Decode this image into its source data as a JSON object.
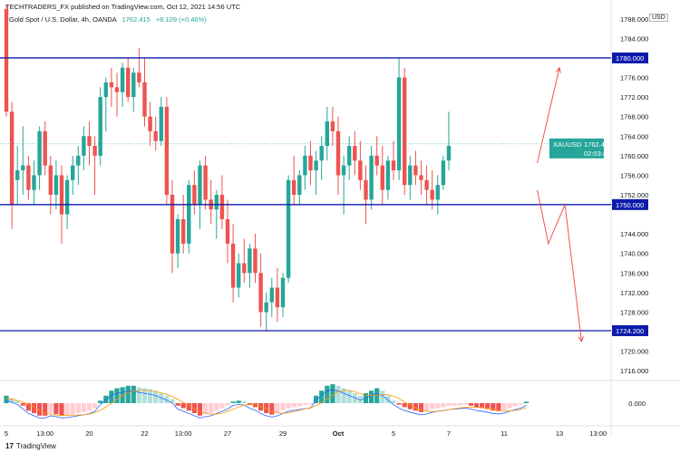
{
  "header": {
    "published": "TECHTRADERS_FX published on TradingView.com, Oct 12, 2021 14:56 UTC",
    "symbol": "Gold Spot / U.S. Dollar, 4h, OANDA",
    "price": "1762.415",
    "change": "+8.109 (+0.46%)"
  },
  "currency": "USD",
  "price_axis": {
    "ticks": [
      "1788.000",
      "1784.000",
      "1776.000",
      "1772.000",
      "1768.000",
      "1764.000",
      "1760.000",
      "1756.000",
      "1752.000",
      "1744.000",
      "1740.000",
      "1736.000",
      "1732.000",
      "1728.000",
      "1720.000",
      "1716.000"
    ],
    "levels": [
      {
        "label": "1780.000",
        "value": 1780.0,
        "color": "#0d1bab"
      },
      {
        "label": "1750.000",
        "value": 1750.0,
        "color": "#0d1bab"
      },
      {
        "label": "1724.200",
        "value": 1724.2,
        "color": "#0d1bab"
      }
    ],
    "current": {
      "symbol": "XAUUSD",
      "price": "1762.415",
      "countdown": "02:03:47",
      "value": 1762.415,
      "color": "#26a69a"
    }
  },
  "time_axis": {
    "labels": [
      {
        "t": "5",
        "bar": 0
      },
      {
        "t": "13:00",
        "bar": 7
      },
      {
        "t": "20",
        "bar": 15
      },
      {
        "t": "22",
        "bar": 25
      },
      {
        "t": "13:00",
        "bar": 32
      },
      {
        "t": "27",
        "bar": 40
      },
      {
        "t": "29",
        "bar": 50
      },
      {
        "t": "Oct",
        "bar": 60
      },
      {
        "t": "5",
        "bar": 70
      },
      {
        "t": "7",
        "bar": 80
      },
      {
        "t": "11",
        "bar": 90
      },
      {
        "t": "13",
        "bar": 100
      },
      {
        "t": "13:00",
        "bar": 107
      }
    ]
  },
  "oscillator": {
    "zero_label": "0.000",
    "values": [
      1.5,
      1.0,
      0.5,
      -0.5,
      -1.5,
      -2.0,
      -2.5,
      -2.5,
      -2.0,
      -2.2,
      -2.5,
      -2.4,
      -2.2,
      -2.0,
      -1.8,
      -1.5,
      -1.0,
      0.5,
      1.5,
      2.5,
      3.0,
      3.2,
      3.5,
      3.5,
      3.2,
      3.0,
      2.8,
      2.5,
      2.0,
      1.5,
      0.8,
      -0.5,
      -1.0,
      -1.5,
      -2.0,
      -2.5,
      -2.2,
      -2.0,
      -1.5,
      -1.0,
      -0.5,
      0.3,
      0.5,
      0.4,
      -0.3,
      -0.8,
      -1.5,
      -2.0,
      -2.3,
      -2.0,
      -1.5,
      -1.0,
      -0.8,
      -0.6,
      -0.4,
      -0.3,
      1.5,
      2.5,
      3.5,
      3.8,
      3.5,
      3.0,
      2.5,
      2.0,
      1.5,
      2.0,
      2.5,
      3.0,
      2.5,
      1.5,
      0.5,
      -0.3,
      -0.8,
      -1.2,
      -1.5,
      -1.8,
      -1.6,
      -1.2,
      -1.0,
      -0.8,
      -0.6,
      -0.5,
      -0.4,
      -0.3,
      -0.5,
      -0.8,
      -1.0,
      -1.2,
      -1.5,
      -1.6,
      -1.4,
      -1.0,
      -0.6,
      -0.3,
      0.3
    ]
  },
  "brand": {
    "name": "TradingView",
    "mark": "17"
  },
  "colors": {
    "up": "#26a69a",
    "down": "#ef5350",
    "level": "#0d1bab",
    "arrow": "#f25151"
  },
  "candles": [
    [
      1790,
      1791,
      1768,
      1769
    ],
    [
      1769,
      1771,
      1745,
      1750
    ],
    [
      1755,
      1762,
      1750,
      1757
    ],
    [
      1757,
      1766,
      1752,
      1758
    ],
    [
      1758,
      1760,
      1751,
      1753
    ],
    [
      1753,
      1759,
      1750,
      1756
    ],
    [
      1756,
      1766,
      1753,
      1765
    ],
    [
      1765,
      1767,
      1756,
      1758
    ],
    [
      1758,
      1760,
      1748,
      1752
    ],
    [
      1752,
      1759,
      1749,
      1756
    ],
    [
      1756,
      1758,
      1742,
      1748
    ],
    [
      1748,
      1756,
      1745,
      1755
    ],
    [
      1755,
      1760,
      1752,
      1758
    ],
    [
      1758,
      1762,
      1754,
      1760
    ],
    [
      1760,
      1766,
      1757,
      1764
    ],
    [
      1764,
      1767,
      1758,
      1762
    ],
    [
      1762,
      1764,
      1752,
      1760
    ],
    [
      1760,
      1774,
      1758,
      1772
    ],
    [
      1772,
      1776,
      1765,
      1775
    ],
    [
      1775,
      1778,
      1770,
      1774
    ],
    [
      1774,
      1777,
      1768,
      1773
    ],
    [
      1773,
      1779,
      1770,
      1778
    ],
    [
      1778,
      1780,
      1771,
      1772
    ],
    [
      1772,
      1778,
      1769,
      1777
    ],
    [
      1777,
      1782,
      1774,
      1775
    ],
    [
      1775,
      1780,
      1766,
      1768
    ],
    [
      1768,
      1771,
      1762,
      1765
    ],
    [
      1765,
      1768,
      1761,
      1763
    ],
    [
      1763,
      1772,
      1762,
      1770
    ],
    [
      1770,
      1772,
      1750,
      1752
    ],
    [
      1752,
      1755,
      1736,
      1740
    ],
    [
      1740,
      1748,
      1737,
      1747
    ],
    [
      1747,
      1752,
      1740,
      1742
    ],
    [
      1742,
      1755,
      1740,
      1754
    ],
    [
      1754,
      1757,
      1748,
      1750
    ],
    [
      1750,
      1759,
      1745,
      1758
    ],
    [
      1758,
      1760,
      1749,
      1751
    ],
    [
      1751,
      1755,
      1746,
      1749
    ],
    [
      1749,
      1753,
      1743,
      1752
    ],
    [
      1752,
      1756,
      1745,
      1747
    ],
    [
      1747,
      1751,
      1738,
      1742
    ],
    [
      1742,
      1746,
      1730,
      1733
    ],
    [
      1733,
      1740,
      1731,
      1738
    ],
    [
      1738,
      1743,
      1734,
      1736
    ],
    [
      1736,
      1742,
      1733,
      1741
    ],
    [
      1741,
      1744,
      1734,
      1736
    ],
    [
      1736,
      1740,
      1725,
      1728
    ],
    [
      1728,
      1732,
      1724,
      1730
    ],
    [
      1730,
      1735,
      1727,
      1733
    ],
    [
      1733,
      1737,
      1726,
      1729
    ],
    [
      1729,
      1736,
      1727,
      1735
    ],
    [
      1735,
      1756,
      1734,
      1755
    ],
    [
      1755,
      1760,
      1750,
      1752
    ],
    [
      1752,
      1757,
      1750,
      1756
    ],
    [
      1756,
      1762,
      1753,
      1760
    ],
    [
      1760,
      1763,
      1754,
      1757
    ],
    [
      1757,
      1761,
      1752,
      1759
    ],
    [
      1759,
      1764,
      1755,
      1762
    ],
    [
      1762,
      1770,
      1759,
      1767
    ],
    [
      1767,
      1770,
      1762,
      1765
    ],
    [
      1765,
      1768,
      1752,
      1756
    ],
    [
      1756,
      1760,
      1748,
      1758
    ],
    [
      1758,
      1764,
      1755,
      1762
    ],
    [
      1762,
      1765,
      1756,
      1759
    ],
    [
      1759,
      1763,
      1753,
      1755
    ],
    [
      1755,
      1758,
      1746,
      1751
    ],
    [
      1751,
      1762,
      1749,
      1760
    ],
    [
      1760,
      1764,
      1756,
      1758
    ],
    [
      1758,
      1762,
      1750,
      1753
    ],
    [
      1753,
      1760,
      1751,
      1759
    ],
    [
      1759,
      1763,
      1755,
      1757
    ],
    [
      1757,
      1780,
      1755,
      1776
    ],
    [
      1776,
      1778,
      1752,
      1754
    ],
    [
      1754,
      1760,
      1751,
      1758
    ],
    [
      1758,
      1761,
      1754,
      1756
    ],
    [
      1756,
      1759,
      1752,
      1755
    ],
    [
      1755,
      1758,
      1750,
      1753
    ],
    [
      1753,
      1757,
      1749,
      1751
    ],
    [
      1751,
      1756,
      1748,
      1754
    ],
    [
      1754,
      1760,
      1753,
      1759
    ],
    [
      1759,
      1769,
      1757,
      1762
    ]
  ],
  "forecast": [
    [
      96,
      1758.5
    ],
    [
      100,
      1778
    ]
  ],
  "forecast2": [
    [
      96,
      1753
    ],
    [
      98,
      1742
    ],
    [
      101,
      1750
    ],
    [
      104,
      1722
    ]
  ]
}
